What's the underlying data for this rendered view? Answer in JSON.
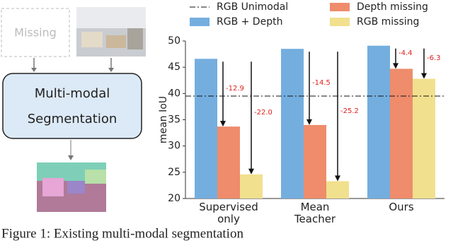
{
  "diagram": {
    "missing_label": "Missing",
    "model_label": [
      "Multi-modal",
      "Segmentation"
    ]
  },
  "chart_data": {
    "type": "bar",
    "ylabel": "mean IoU",
    "categories": [
      "Supervised only",
      "Mean Teacher",
      "Ours"
    ],
    "series": [
      {
        "name": "RGB + Depth",
        "color": "#74aedf",
        "values": [
          46.6,
          48.5,
          49.1
        ]
      },
      {
        "name": "Depth missing",
        "color": "#ee8c6c",
        "values": [
          33.7,
          34.0,
          44.7
        ]
      },
      {
        "name": "RGB missing",
        "color": "#f1e08e",
        "values": [
          24.6,
          23.3,
          42.8
        ]
      }
    ],
    "annotations": [
      [
        "-12.9",
        "-22.0"
      ],
      [
        "-14.5",
        "-25.2"
      ],
      [
        "-4.4",
        "-6.3"
      ]
    ],
    "reference_line": {
      "name": "RGB Unimodal",
      "value": 39.5
    },
    "ylim": [
      20,
      50
    ],
    "yticks": [
      20,
      25,
      30,
      35,
      40,
      45,
      50
    ],
    "grid": false
  },
  "caption": "Figure 1:    Existing multi-modal segmentation"
}
